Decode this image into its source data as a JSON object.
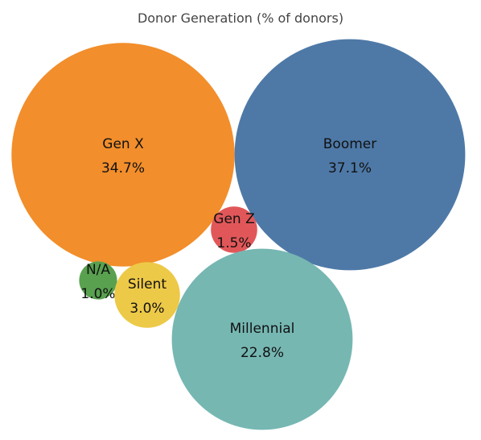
{
  "chart_data": {
    "type": "bubble",
    "title": "Donor Generation (% of donors)",
    "items": [
      {
        "name": "Gen X",
        "value": 34.7,
        "value_label": "34.7%",
        "color": "#F28E2B"
      },
      {
        "name": "Boomer",
        "value": 37.1,
        "value_label": "37.1%",
        "color": "#4E79A7"
      },
      {
        "name": "Gen Z",
        "value": 1.5,
        "value_label": "1.5%",
        "color": "#E15759"
      },
      {
        "name": "N/A",
        "value": 1.0,
        "value_label": "1.0%",
        "color": "#59A14F"
      },
      {
        "name": "Silent",
        "value": 3.0,
        "value_label": "3.0%",
        "color": "#EDC948"
      },
      {
        "name": "Millennial",
        "value": 22.8,
        "value_label": "22.8%",
        "color": "#76B7B2"
      }
    ]
  }
}
